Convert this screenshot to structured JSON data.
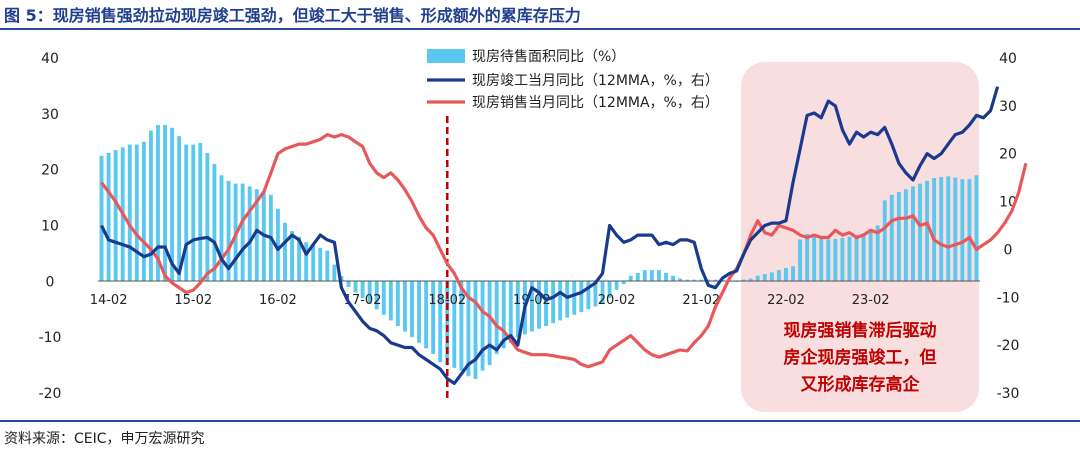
{
  "title": "图 5：现房销售强劲拉动现房竣工强劲，但竣工大于销售、形成额外的累库存压力",
  "source": "资料来源：CEIC，申万宏源研究",
  "annotation": {
    "lines": [
      "现房强销售滞后驱动",
      "房企现房强竣工，但",
      "又形成库存高企"
    ],
    "box_color": "#f8dede",
    "text_color": "#c00000"
  },
  "chart_data": {
    "type": "bar+line",
    "x_tick_labels": [
      "14-02",
      "15-02",
      "16-02",
      "17-02",
      "18-02",
      "19-02",
      "20-02",
      "21-02",
      "22-02",
      "23-02"
    ],
    "x_start": "2014-01",
    "y_left": {
      "min": -20,
      "max": 40,
      "ticks": [
        "-20",
        "-10",
        "0",
        "10",
        "20",
        "30",
        "40"
      ]
    },
    "y_right": {
      "min": -30,
      "max": 40,
      "ticks": [
        "-30",
        "-20",
        "-10",
        "0",
        "10",
        "20",
        "30",
        "40"
      ]
    },
    "vline_month": "2018-02",
    "legend": [
      {
        "name": "现房待售面积同比（%）",
        "kind": "bar",
        "color": "#5bc8f0"
      },
      {
        "name": "现房竣工当月同比（12MMA，%，右）",
        "kind": "line",
        "color": "#1a3a8f"
      },
      {
        "name": "现房销售当月同比（12MMA，%，右）",
        "kind": "line",
        "color": "#e8585a"
      }
    ],
    "bars": [
      22.5,
      23,
      23.5,
      24,
      24.5,
      24.5,
      25,
      27,
      28,
      28,
      27.5,
      26,
      24.5,
      24.5,
      24.8,
      23,
      21,
      19,
      18,
      17.5,
      17.5,
      17,
      16.5,
      16,
      15.5,
      13,
      10.5,
      9,
      8,
      7,
      6.5,
      6,
      5.5,
      3,
      1,
      -1,
      -2,
      -3,
      -4,
      -5,
      -6,
      -7,
      -8,
      -9,
      -10,
      -11,
      -12,
      -13,
      -14.5,
      -15,
      -15.5,
      -16,
      -17,
      -17.5,
      -16,
      -15,
      -13,
      -12,
      -11,
      -10,
      -9.5,
      -9,
      -8.5,
      -8,
      -7.5,
      -7,
      -6.5,
      -6,
      -5.5,
      -5,
      -4.5,
      -4,
      -3,
      -1.5,
      -0.5,
      1,
      1.5,
      2,
      2,
      2,
      1.5,
      1,
      0.5,
      0.3,
      0.3,
      0.3,
      0.3,
      0.3,
      0.2,
      0,
      0,
      0.3,
      0.5,
      1,
      1.3,
      1.6,
      2,
      2.4,
      2.7,
      7.5,
      8.5,
      8.5,
      8,
      7.5,
      7.6,
      7.8,
      8,
      8.3,
      8.6,
      9,
      10,
      14.5,
      15.5,
      16,
      16.5,
      17,
      17.5,
      18,
      18.5,
      18.7,
      18.8,
      18.6,
      18.3,
      18.3,
      19
    ],
    "completion": [
      5,
      2,
      1.5,
      1,
      0.5,
      -0.5,
      -1.5,
      -1,
      0.5,
      0.5,
      -3,
      -5,
      1,
      2,
      2.3,
      2.5,
      1.5,
      -2,
      -4,
      -2,
      0,
      1.5,
      4,
      3,
      2.5,
      0,
      1.5,
      3,
      2,
      -1,
      1,
      3,
      2,
      1.5,
      -8,
      -11,
      -13,
      -15,
      -16.5,
      -17,
      -18,
      -19.5,
      -20,
      -20.5,
      -20.5,
      -22,
      -23,
      -24,
      -25,
      -27,
      -28,
      -26,
      -24,
      -23,
      -21,
      -20,
      -21,
      -19,
      -18,
      -20,
      -12,
      -8,
      -9,
      -10.5,
      -10,
      -9,
      -10,
      -9.5,
      -9,
      -8,
      -7,
      -5,
      5,
      3,
      1.5,
      2,
      3,
      3,
      3,
      1,
      1.5,
      1,
      2,
      2,
      1.5,
      -4,
      -7.5,
      -8,
      -6,
      -5,
      -4.5,
      -1,
      2,
      3.5,
      5,
      5.5,
      5.5,
      6,
      14,
      21,
      28,
      28.5,
      27.5,
      31,
      30,
      25,
      22,
      24.5,
      23.5,
      24.5,
      24,
      25.5,
      22,
      18,
      16,
      14.5,
      17.5,
      20,
      19,
      20,
      22,
      24,
      24.5,
      26,
      28,
      27.5,
      29,
      34
    ],
    "sales": [
      14,
      12,
      10,
      7.5,
      5,
      3,
      1.5,
      0,
      -2,
      -5.5,
      -7,
      -8,
      -9,
      -8.5,
      -7,
      -5,
      -4,
      -2,
      0,
      3,
      6,
      8,
      10,
      12,
      16,
      20,
      21,
      21.5,
      22,
      22,
      22.5,
      23,
      24,
      23.5,
      24,
      23.5,
      22.5,
      21.5,
      18,
      16,
      15,
      16,
      14.5,
      12.5,
      10,
      7,
      4.5,
      3,
      0,
      -3,
      -5,
      -8,
      -10,
      -11,
      -13,
      -14,
      -16,
      -17,
      -19,
      -21,
      -21.5,
      -22,
      -22,
      -22,
      -22.2,
      -22.5,
      -22.7,
      -23,
      -24,
      -24.5,
      -24,
      -23.5,
      -21,
      -20,
      -19,
      -18,
      -19.5,
      -21,
      -22,
      -22.5,
      -22,
      -21.5,
      -21,
      -21.2,
      -19.5,
      -18,
      -16,
      -12,
      -9,
      -6,
      -4,
      -1,
      3,
      6,
      3.5,
      3,
      5,
      4.5,
      4,
      3,
      2.5,
      3,
      2.5,
      2.5,
      4,
      3,
      3.5,
      2.5,
      3,
      4,
      3.5,
      4.5,
      6,
      6.5,
      6.5,
      7,
      5,
      5.5,
      2,
      1,
      0.5,
      1,
      1.5,
      2.5,
      0,
      1,
      2,
      3.5,
      5.5,
      8,
      12,
      18
    ]
  }
}
